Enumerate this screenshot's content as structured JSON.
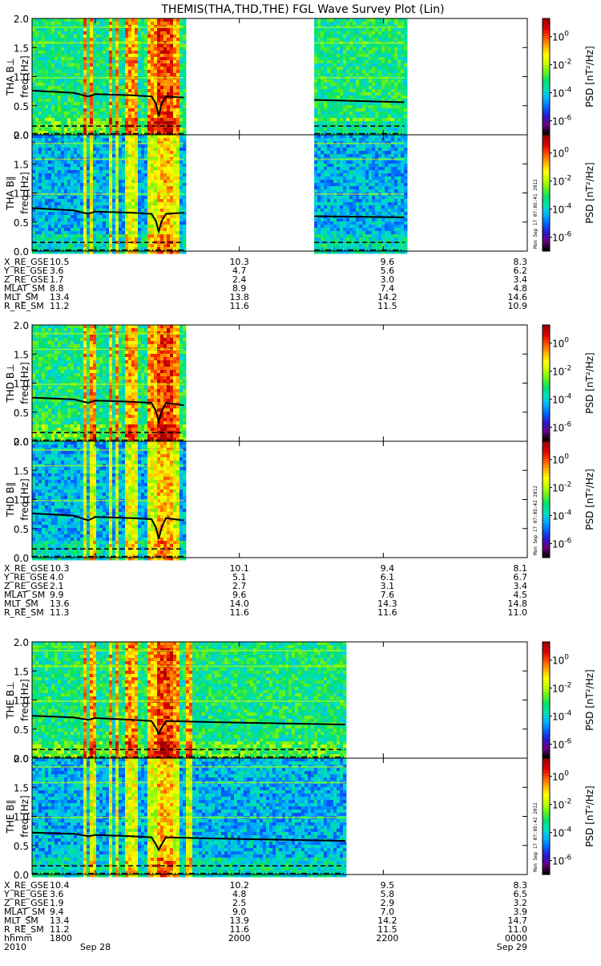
{
  "title": "THEMIS(THA,THD,THE) FGL Wave Survey Plot (Lin)",
  "chart_data": [
    {
      "type": "heatmap",
      "probe": "THA",
      "panels": [
        {
          "ylabel": "THA B⊥",
          "ylabel2": "freq [Hz]",
          "stamp": ""
        },
        {
          "ylabel": "THA B∥",
          "ylabel2": "freq [Hz]",
          "stamp": "Mon Sep 17 07:05:41 2012"
        }
      ],
      "ylim": [
        0,
        2.0
      ],
      "yticks": [
        "0.0",
        "0.5",
        "1.0",
        "1.5",
        "2.0"
      ],
      "data_x_ranges": [
        [
          1712,
          1923
        ],
        [
          2104,
          2229
        ]
      ],
      "top_line": [
        [
          1712,
          0.76
        ],
        [
          1770,
          0.72
        ],
        [
          1790,
          0.66
        ],
        [
          1800,
          0.7
        ],
        [
          1850,
          0.68
        ],
        [
          1878,
          0.66
        ],
        [
          1884,
          0.54
        ],
        [
          1888,
          0.32
        ],
        [
          1892,
          0.54
        ],
        [
          1898,
          0.66
        ],
        [
          1923,
          0.64
        ],
        [
          2104,
          0.6
        ],
        [
          2229,
          0.56
        ]
      ],
      "bottom_line": [
        [
          1712,
          0.74
        ],
        [
          1770,
          0.7
        ],
        [
          1790,
          0.64
        ],
        [
          1800,
          0.68
        ],
        [
          1850,
          0.66
        ],
        [
          1878,
          0.64
        ],
        [
          1884,
          0.52
        ],
        [
          1888,
          0.34
        ],
        [
          1892,
          0.52
        ],
        [
          1898,
          0.64
        ],
        [
          1923,
          0.66
        ],
        [
          2104,
          0.6
        ],
        [
          2229,
          0.58
        ]
      ],
      "dashed_line": 0.15,
      "dashdot_line": 0.02,
      "emission_bands": [
        1782,
        1793,
        1818,
        1828,
        1840,
        1848,
        1852,
        1875,
        1884,
        1894,
        1899,
        1904,
        1910
      ],
      "ephemeris": [
        {
          "label": "X_RE_GSE",
          "values": [
            "10.5",
            "10.3",
            "9.6",
            "8.3"
          ]
        },
        {
          "label": "Y_RE_GSE",
          "values": [
            "3.6",
            "4.7",
            "5.6",
            "6.2"
          ]
        },
        {
          "label": "Z_RE_GSE",
          "values": [
            "1.7",
            "2.4",
            "3.0",
            "3.4"
          ]
        },
        {
          "label": "MLAT_SM",
          "values": [
            "8.8",
            "8.9",
            "7.4",
            "4.8"
          ]
        },
        {
          "label": "MLT_SM",
          "values": [
            "13.4",
            "13.8",
            "14.2",
            "14.6"
          ]
        },
        {
          "label": "R_RE_SM",
          "values": [
            "11.2",
            "11.6",
            "11.5",
            "10.9"
          ]
        }
      ]
    },
    {
      "type": "heatmap",
      "probe": "THD",
      "panels": [
        {
          "ylabel": "THD B⊥",
          "ylabel2": "freq [Hz]",
          "stamp": ""
        },
        {
          "ylabel": "THD B∥",
          "ylabel2": "freq [Hz]",
          "stamp": "Mon Sep 17 07:05:42 2012"
        }
      ],
      "ylim": [
        0,
        2.0
      ],
      "yticks": [
        "0.0",
        "0.5",
        "1.0",
        "1.5",
        "2.0"
      ],
      "data_x_ranges": [
        [
          1712,
          1923
        ]
      ],
      "top_line": [
        [
          1712,
          0.75
        ],
        [
          1770,
          0.72
        ],
        [
          1790,
          0.66
        ],
        [
          1800,
          0.7
        ],
        [
          1850,
          0.68
        ],
        [
          1878,
          0.66
        ],
        [
          1884,
          0.52
        ],
        [
          1888,
          0.34
        ],
        [
          1892,
          0.52
        ],
        [
          1898,
          0.66
        ],
        [
          1923,
          0.62
        ]
      ],
      "bottom_line": [
        [
          1712,
          0.76
        ],
        [
          1770,
          0.72
        ],
        [
          1790,
          0.64
        ],
        [
          1800,
          0.7
        ],
        [
          1850,
          0.68
        ],
        [
          1878,
          0.66
        ],
        [
          1884,
          0.52
        ],
        [
          1888,
          0.32
        ],
        [
          1892,
          0.52
        ],
        [
          1898,
          0.68
        ],
        [
          1923,
          0.64
        ]
      ],
      "dashed_line": 0.15,
      "dashdot_line": 0.02,
      "emission_bands": [
        1782,
        1795,
        1818,
        1828,
        1840,
        1848,
        1852,
        1875,
        1884,
        1894,
        1899,
        1904,
        1910
      ],
      "ephemeris": [
        {
          "label": "X_RE_GSE",
          "values": [
            "10.3",
            "10.1",
            "9.4",
            "8.1"
          ]
        },
        {
          "label": "Y_RE_GSE",
          "values": [
            "4.0",
            "5.1",
            "6.1",
            "6.7"
          ]
        },
        {
          "label": "Z_RE_GSE",
          "values": [
            "2.1",
            "2.7",
            "3.1",
            "3.4"
          ]
        },
        {
          "label": "MLAT_SM",
          "values": [
            "9.9",
            "9.6",
            "7.6",
            "4.5"
          ]
        },
        {
          "label": "MLT_SM",
          "values": [
            "13.6",
            "14.0",
            "14.3",
            "14.8"
          ]
        },
        {
          "label": "R_RE_SM",
          "values": [
            "11.3",
            "11.6",
            "11.6",
            "11.0"
          ]
        }
      ]
    },
    {
      "type": "heatmap",
      "probe": "THE",
      "panels": [
        {
          "ylabel": "THE B⊥",
          "ylabel2": "freq [Hz]",
          "stamp": ""
        },
        {
          "ylabel": "THE B∥",
          "ylabel2": "freq [Hz]",
          "stamp": "Mon Sep 17 07:05:42 2012"
        }
      ],
      "ylim": [
        0,
        2.0
      ],
      "yticks": [
        "0.0",
        "0.5",
        "1.0",
        "1.5",
        "2.0"
      ],
      "data_x_ranges": [
        [
          1712,
          2147
        ]
      ],
      "top_line": [
        [
          1712,
          0.73
        ],
        [
          1770,
          0.7
        ],
        [
          1790,
          0.66
        ],
        [
          1800,
          0.69
        ],
        [
          1850,
          0.66
        ],
        [
          1878,
          0.64
        ],
        [
          1884,
          0.52
        ],
        [
          1888,
          0.42
        ],
        [
          1892,
          0.52
        ],
        [
          1898,
          0.64
        ],
        [
          1960,
          0.62
        ],
        [
          2050,
          0.6
        ],
        [
          2147,
          0.58
        ]
      ],
      "bottom_line": [
        [
          1712,
          0.72
        ],
        [
          1770,
          0.7
        ],
        [
          1790,
          0.66
        ],
        [
          1800,
          0.68
        ],
        [
          1850,
          0.66
        ],
        [
          1878,
          0.64
        ],
        [
          1884,
          0.52
        ],
        [
          1888,
          0.42
        ],
        [
          1892,
          0.52
        ],
        [
          1898,
          0.64
        ],
        [
          1960,
          0.62
        ],
        [
          2050,
          0.6
        ],
        [
          2147,
          0.58
        ]
      ],
      "dashed_line": 0.15,
      "dashdot_line": 0.02,
      "emission_bands": [
        1782,
        1795,
        1818,
        1828,
        1840,
        1848,
        1852,
        1875,
        1884,
        1894,
        1899,
        1904,
        1910,
        1928
      ],
      "ephemeris": [
        {
          "label": "X_RE_GSE",
          "values": [
            "10.4",
            "10.2",
            "9.5",
            "8.3"
          ]
        },
        {
          "label": "Y_RE_GSE",
          "values": [
            "3.6",
            "4.8",
            "5.8",
            "6.5"
          ]
        },
        {
          "label": "Z_RE_GSE",
          "values": [
            "1.9",
            "2.5",
            "2.9",
            "3.2"
          ]
        },
        {
          "label": "MLAT_SM",
          "values": [
            "9.4",
            "9.0",
            "7.0",
            "3.9"
          ]
        },
        {
          "label": "MLT_SM",
          "values": [
            "13.4",
            "13.9",
            "14.2",
            "14.7"
          ]
        },
        {
          "label": "R_RE_SM",
          "values": [
            "11.2",
            "11.6",
            "11.5",
            "11.0"
          ]
        },
        {
          "label": "hhmm",
          "values": [
            "1800",
            "2000",
            "2200",
            "0000"
          ]
        }
      ]
    }
  ],
  "x_axis": {
    "start_minutes": 1712,
    "end_minutes": 2400,
    "tick_minutes": [
      1800,
      2000,
      2200,
      2400
    ],
    "year_label": "2010",
    "date_labels": [
      {
        "minutes": 1800,
        "text": "Sep 28"
      },
      {
        "minutes": 2400,
        "text": "Sep 29"
      }
    ]
  },
  "colorbar": {
    "label": "PSD [nT²/Hz]",
    "tick_labels": [
      {
        "text": "10",
        "exp": "0",
        "log": 0
      },
      {
        "text": "10",
        "exp": "-2",
        "log": -2
      },
      {
        "text": "10",
        "exp": "-4",
        "log": -4
      },
      {
        "text": "10",
        "exp": "-6",
        "log": -6
      }
    ],
    "log_range": [
      -7,
      1.3
    ],
    "colors": [
      "#000000",
      "#6a007f",
      "#2a18c8",
      "#0060ff",
      "#00b0ff",
      "#00e0c0",
      "#00e070",
      "#60f020",
      "#c0ff00",
      "#ffff00",
      "#ffb000",
      "#ff5000",
      "#e00000",
      "#a00000"
    ]
  }
}
